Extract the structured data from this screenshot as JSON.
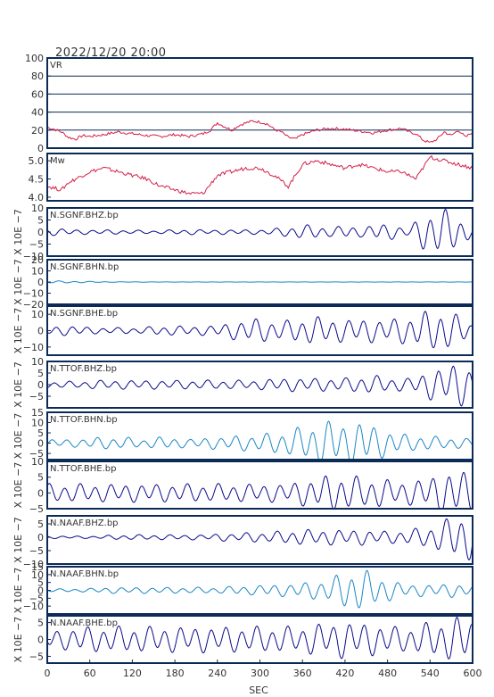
{
  "header": {
    "timestamp": "2022/12/20 20:00"
  },
  "colors": {
    "frame": "#0b2a55",
    "gridline": "#0b2a55",
    "text": "#333333",
    "vr_mw": "#d4204a",
    "dark_trace": "#0a0a8c",
    "light_trace": "#1a86c6"
  },
  "x_axis": {
    "label": "SEC",
    "range": [
      0,
      600
    ],
    "ticks": [
      "0",
      "60",
      "120",
      "180",
      "240",
      "300",
      "360",
      "420",
      "480",
      "540",
      "600"
    ]
  },
  "chart_data": [
    {
      "type": "line",
      "label": "VR",
      "ylim": [
        0,
        100
      ],
      "ticks": [
        "0",
        "20",
        "40",
        "60",
        "80",
        "100"
      ],
      "grid": true,
      "color_key": "vr_mw",
      "x": [
        0,
        10,
        20,
        30,
        40,
        50,
        60,
        80,
        100,
        120,
        140,
        160,
        180,
        200,
        220,
        230,
        240,
        250,
        260,
        270,
        280,
        290,
        300,
        310,
        320,
        330,
        340,
        350,
        360,
        380,
        400,
        420,
        440,
        460,
        480,
        500,
        510,
        520,
        530,
        540,
        550,
        560,
        570,
        580,
        590,
        600
      ],
      "values": [
        23,
        21,
        18,
        12,
        10,
        14,
        13,
        15,
        18,
        16,
        14,
        13,
        15,
        13,
        16,
        20,
        28,
        24,
        20,
        25,
        28,
        30,
        29,
        27,
        21,
        18,
        12,
        10,
        15,
        20,
        22,
        21,
        19,
        17,
        20,
        22,
        18,
        16,
        9,
        6,
        10,
        18,
        14,
        20,
        12,
        18
      ]
    },
    {
      "type": "line",
      "label": "Mw",
      "ylim": [
        3.9,
        5.2
      ],
      "ticks": [
        "4.0",
        "4.5",
        "5.0"
      ],
      "grid": false,
      "color_key": "vr_mw",
      "x": [
        0,
        10,
        20,
        30,
        40,
        50,
        60,
        80,
        100,
        120,
        140,
        160,
        180,
        200,
        220,
        240,
        260,
        280,
        300,
        320,
        340,
        360,
        380,
        400,
        420,
        440,
        460,
        480,
        500,
        520,
        540,
        560,
        580,
        600
      ],
      "values": [
        4.3,
        4.25,
        4.2,
        4.4,
        4.5,
        4.6,
        4.7,
        4.8,
        4.7,
        4.6,
        4.5,
        4.3,
        4.2,
        4.1,
        4.1,
        4.6,
        4.7,
        4.8,
        4.8,
        4.6,
        4.3,
        4.9,
        5.0,
        4.9,
        4.8,
        4.9,
        4.8,
        4.7,
        4.7,
        4.5,
        5.1,
        5.0,
        4.9,
        4.8
      ]
    },
    {
      "type": "line",
      "label": "N.SGNF.BHZ.bp",
      "ylabel": "X 10E −7",
      "ylim": [
        -10,
        10
      ],
      "ticks": [
        "−10",
        "−5",
        "0",
        "5",
        "10"
      ],
      "grid": false,
      "color_key": "dark_trace",
      "x_range": [
        0,
        600
      ],
      "amplitude_envelope": [
        1.5,
        1.5,
        1,
        1,
        1,
        0.8,
        0.8,
        0.7,
        1,
        1.2,
        1,
        1,
        1.1,
        1,
        1.2,
        2,
        3,
        3,
        2,
        3,
        2,
        4,
        3,
        2,
        9,
        10,
        8,
        2
      ]
    },
    {
      "type": "line",
      "label": "N.SGNF.BHN.bp",
      "ylabel": "X 10E −7",
      "ylim": [
        -20,
        20
      ],
      "ticks": [
        "−20",
        "−10",
        "0",
        "10",
        "20"
      ],
      "grid": false,
      "color_key": "light_trace",
      "x_range": [
        0,
        600
      ],
      "amplitude_envelope": [
        1.2,
        1,
        0.8,
        0.5,
        0.3,
        0.2,
        0.2,
        0.1,
        0.1,
        0.1,
        0.1,
        0.1,
        0.1,
        0.1,
        0.1,
        0.1,
        0.1,
        0.1,
        0.1,
        0.1,
        0.1,
        0.1,
        0.1,
        0.1,
        0.1,
        0.1,
        0.1,
        0.1
      ]
    },
    {
      "type": "line",
      "label": "N.SGNF.BHE.bp",
      "ylabel": "X 10E −7",
      "ylim": [
        -15,
        15
      ],
      "ticks": [
        "−10",
        "0",
        "10"
      ],
      "grid": false,
      "color_key": "dark_trace",
      "x_range": [
        0,
        600
      ],
      "amplitude_envelope": [
        3,
        3,
        3,
        2,
        2,
        2,
        2,
        3,
        3,
        3,
        3,
        4,
        6,
        8,
        7,
        6,
        8,
        9,
        8,
        7,
        8,
        7,
        8,
        9,
        12,
        14,
        10,
        5
      ]
    },
    {
      "type": "line",
      "label": "N.TTOF.BHZ.bp",
      "ylabel": "X 10E −7",
      "ylim": [
        -10,
        10
      ],
      "ticks": [
        "−5",
        "0",
        "5",
        "10"
      ],
      "grid": false,
      "color_key": "dark_trace",
      "x_range": [
        0,
        600
      ],
      "amplitude_envelope": [
        1.5,
        1.5,
        1.5,
        2,
        2,
        2,
        2,
        2,
        2,
        2,
        2,
        2,
        2,
        2,
        2.5,
        3,
        3,
        3,
        3,
        3,
        4,
        4,
        3,
        3,
        6,
        8,
        10,
        8
      ]
    },
    {
      "type": "line",
      "label": "N.TTOF.BHN.bp",
      "ylabel": "X 10E −7",
      "ylim": [
        -8,
        15
      ],
      "ticks": [
        "−5",
        "0",
        "5",
        "10",
        "15"
      ],
      "grid": false,
      "color_key": "light_trace",
      "x_range": [
        0,
        600
      ],
      "amplitude_envelope": [
        2,
        2,
        2,
        3,
        3,
        3,
        2,
        3,
        3,
        2,
        3,
        3,
        4,
        4,
        5,
        6,
        8,
        10,
        12,
        10,
        12,
        8,
        6,
        4,
        4,
        3,
        3,
        2
      ]
    },
    {
      "type": "line",
      "label": "N.TTOF.BHE.bp",
      "ylabel": "X 10E −7",
      "ylim": [
        -5,
        10
      ],
      "ticks": [
        "−5",
        "0",
        "5",
        "10"
      ],
      "grid": false,
      "color_key": "dark_trace",
      "x_range": [
        0,
        600
      ],
      "amplitude_envelope": [
        3,
        3,
        3,
        3,
        3,
        3,
        3,
        3,
        3,
        3,
        3,
        3,
        3,
        3,
        3,
        3,
        4,
        5,
        6,
        6,
        5,
        5,
        4,
        4,
        5,
        7,
        8,
        6
      ]
    },
    {
      "type": "line",
      "label": "N.NAAF.BHZ.bp",
      "ylabel": "X 10E −7",
      "ylim": [
        -10,
        8
      ],
      "ticks": [
        "−10",
        "−5",
        "0",
        "5"
      ],
      "grid": false,
      "color_key": "dark_trace",
      "x_range": [
        0,
        600
      ],
      "amplitude_envelope": [
        0.5,
        0.5,
        0.5,
        0.5,
        0.8,
        1,
        1,
        1,
        1,
        1,
        1,
        1.5,
        1.5,
        2,
        2,
        2.5,
        3,
        3,
        3,
        3,
        3,
        2.5,
        2.5,
        3,
        4,
        6,
        9,
        9
      ]
    },
    {
      "type": "line",
      "label": "N.NAAF.BHN.bp",
      "ylabel": "X 10E −7",
      "ylim": [
        -15,
        15
      ],
      "ticks": [
        "−10",
        "−5",
        "0",
        "5",
        "10",
        "15"
      ],
      "grid": false,
      "color_key": "light_trace",
      "x_range": [
        0,
        600
      ],
      "amplitude_envelope": [
        1,
        1,
        1,
        1.5,
        2,
        2,
        2,
        2,
        2,
        2,
        2,
        2,
        3,
        3,
        4,
        4,
        5,
        6,
        8,
        13,
        14,
        10,
        6,
        4,
        4,
        4,
        5,
        3
      ]
    },
    {
      "type": "line",
      "label": "N.NAAF.BHE.bp",
      "ylabel": "X 10E −7",
      "ylim": [
        -7,
        7
      ],
      "ticks": [
        "−5",
        "0",
        "5"
      ],
      "grid": false,
      "color_key": "dark_trace",
      "x_range": [
        0,
        600
      ],
      "amplitude_envelope": [
        3,
        3,
        4,
        4,
        4,
        4,
        4,
        4,
        4,
        4,
        4,
        4,
        4,
        4,
        4,
        4,
        4,
        5,
        5,
        6,
        5,
        5,
        4,
        4,
        5,
        6,
        7,
        7
      ]
    }
  ]
}
